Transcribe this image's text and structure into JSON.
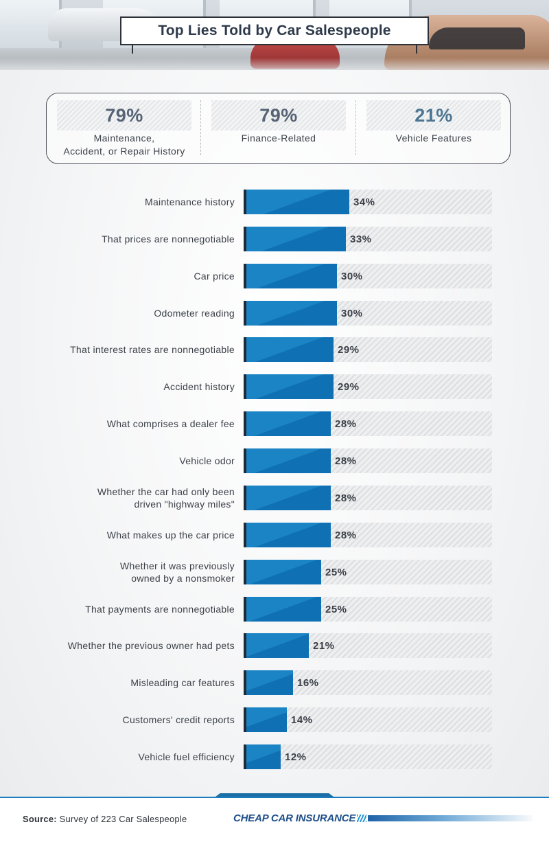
{
  "header": {
    "title": "Top Lies Told by Car Salespeople"
  },
  "stats": [
    {
      "value": "79%",
      "label_line1": "Maintenance,",
      "label_line2": "Accident, or Repair History"
    },
    {
      "value": "79%",
      "label_line1": "Finance-Related",
      "label_line2": ""
    },
    {
      "value": "21%",
      "label_line1": "Vehicle Features",
      "label_line2": ""
    }
  ],
  "chart_data": {
    "type": "bar",
    "orientation": "horizontal",
    "categories": [
      [
        "Maintenance history"
      ],
      [
        "That prices are nonnegotiable"
      ],
      [
        "Car price"
      ],
      [
        "Odometer reading"
      ],
      [
        "That interest rates are nonnegotiable"
      ],
      [
        "Accident history"
      ],
      [
        "What comprises a dealer fee"
      ],
      [
        "Vehicle odor"
      ],
      [
        "Whether the car had only been",
        "driven \"highway miles\""
      ],
      [
        "What makes up the car price"
      ],
      [
        "Whether it was previously",
        "owned by a nonsmoker"
      ],
      [
        "That payments are nonnegotiable"
      ],
      [
        "Whether the previous owner had pets"
      ],
      [
        "Misleading car features"
      ],
      [
        "Customers' credit reports"
      ],
      [
        "Vehicle fuel efficiency"
      ]
    ],
    "values": [
      34,
      33,
      30,
      30,
      29,
      29,
      28,
      28,
      28,
      28,
      25,
      25,
      21,
      16,
      14,
      12
    ],
    "value_labels": [
      "34%",
      "33%",
      "30%",
      "30%",
      "29%",
      "29%",
      "28%",
      "28%",
      "28%",
      "28%",
      "25%",
      "25%",
      "21%",
      "16%",
      "14%",
      "12%"
    ],
    "unit": "%",
    "xlim": [
      0,
      80
    ],
    "grid": false,
    "legend": "none",
    "colors": {
      "bar": "#1b84c4",
      "bar_shade": "#0f70b3",
      "bar_edge": "#1f2a36",
      "track": "#e4e6e8"
    }
  },
  "footer": {
    "source_label": "Source:",
    "source_text": "Survey of 223 Car Salespeople",
    "brand": "CHEAP CAR INSURANCE"
  },
  "colors": {
    "accent": "#1b7dbf",
    "title_text": "#2e3a4a",
    "stat_blue": "#4b7592",
    "stat_slate": "#566374"
  }
}
